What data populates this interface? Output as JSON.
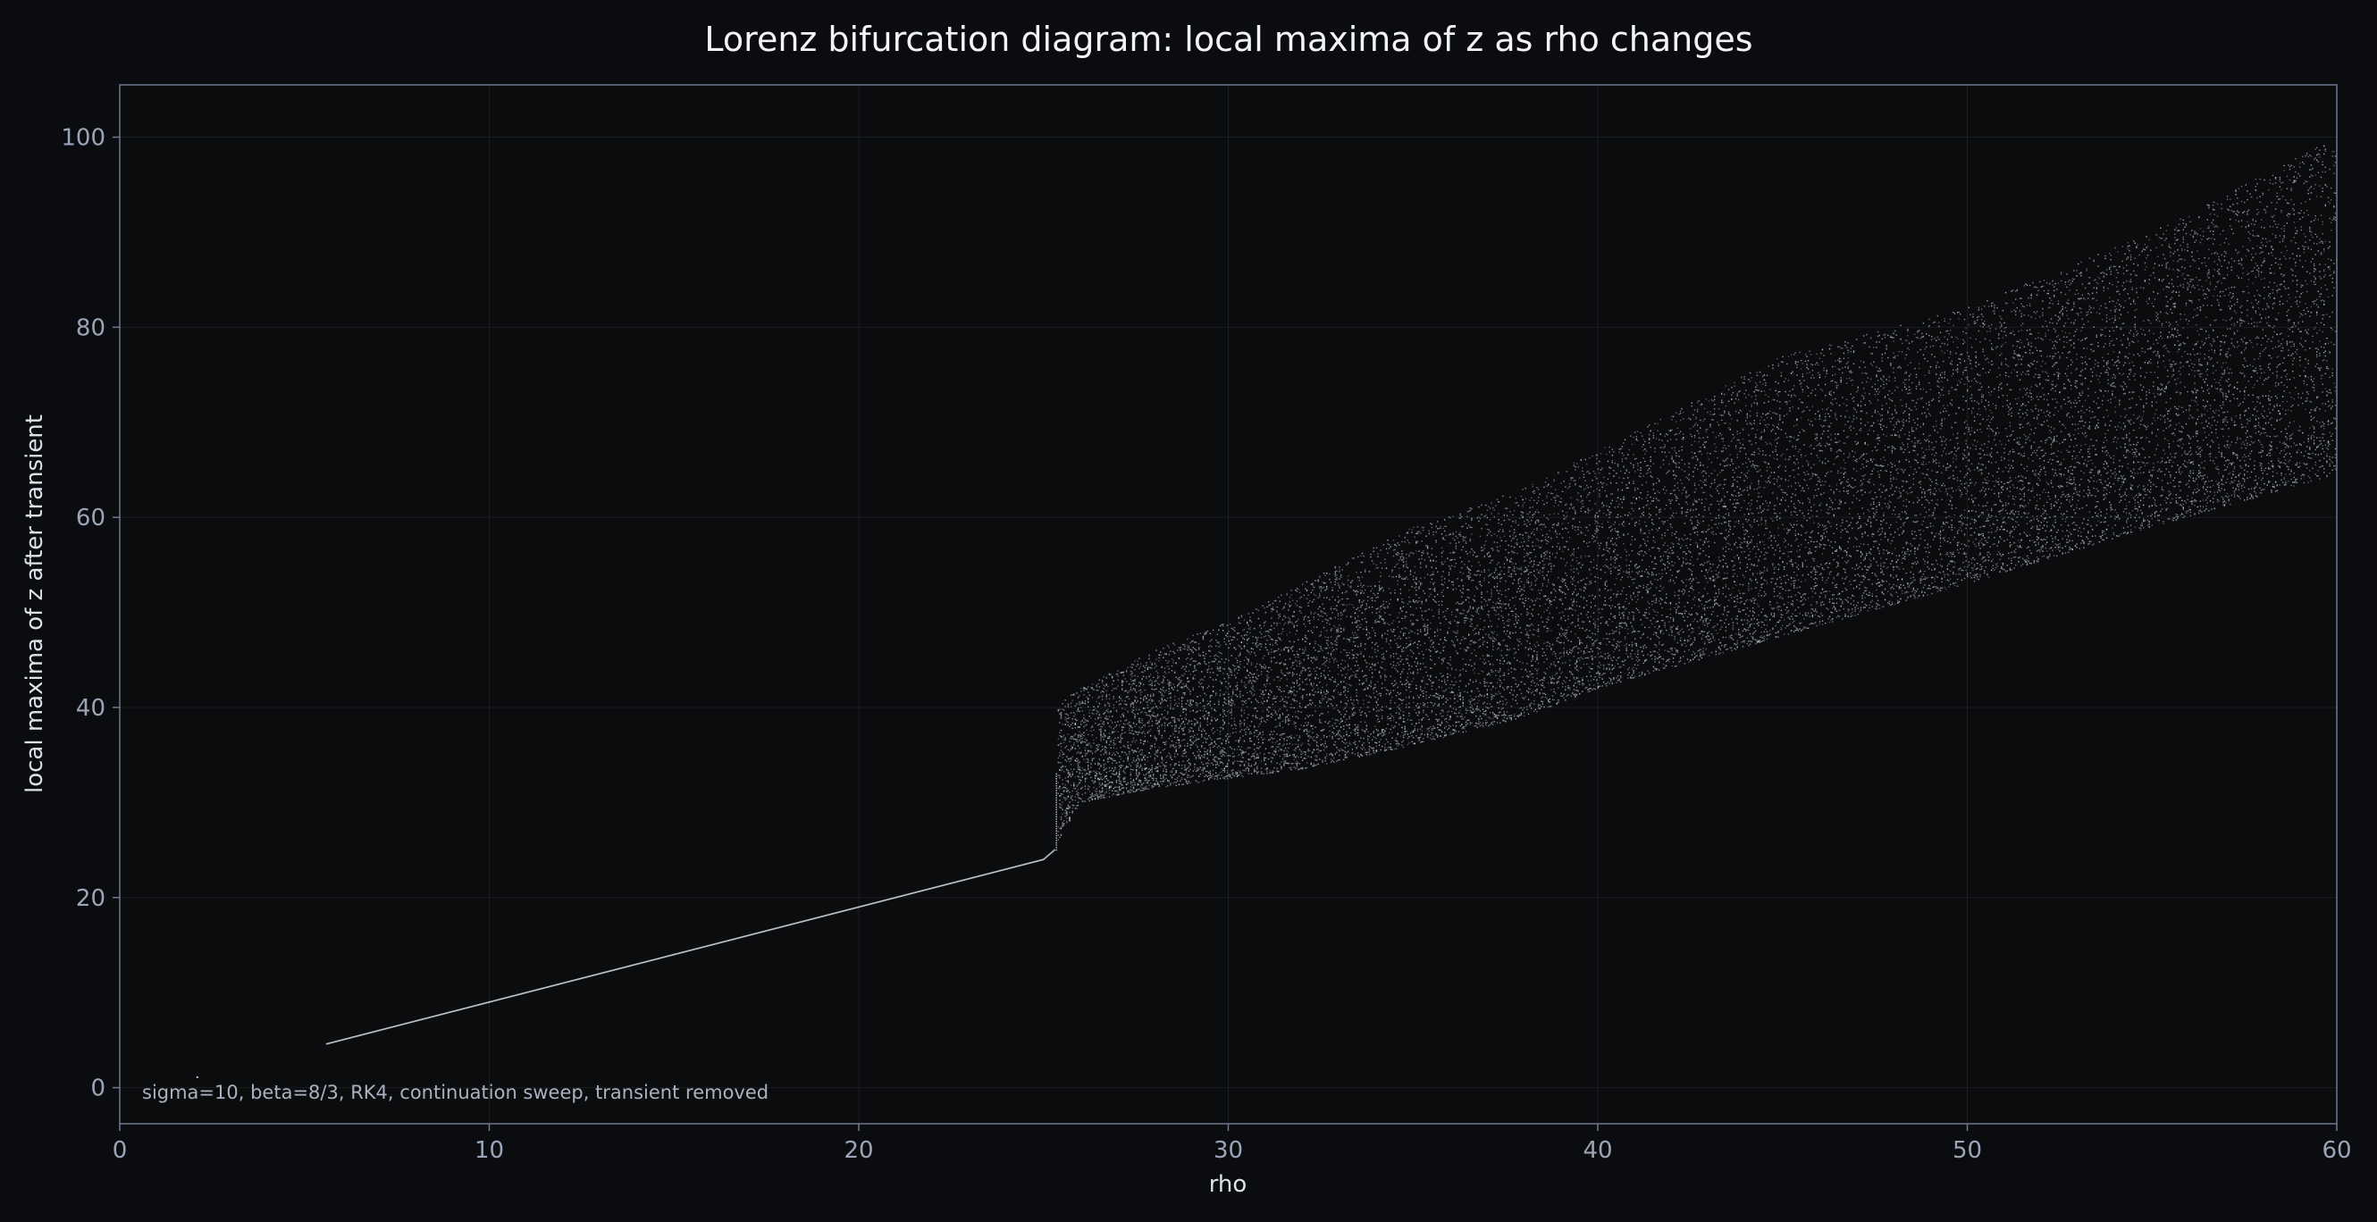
{
  "chart_data": {
    "type": "scatter",
    "title": "Lorenz bifurcation diagram: local maxima of z as rho changes",
    "xlabel": "rho",
    "ylabel": "local maxima of z after transient",
    "xlim": [
      0,
      60
    ],
    "ylim": [
      -3.8,
      105.5
    ],
    "x_ticks": [
      "0",
      "10",
      "20",
      "30",
      "40",
      "50",
      "60"
    ],
    "y_ticks": [
      "0",
      "20",
      "40",
      "60",
      "80",
      "100"
    ],
    "grid": true,
    "legend": "none",
    "annotation": "sigma=10, beta=8/3, RK4, continuation sweep, transient removed",
    "parameters": {
      "sigma": 10,
      "beta": "8/3",
      "method": "RK4"
    },
    "series": [
      {
        "kind": "fixed-point branch (single local maximum per rho)",
        "points": [
          [
            2.1,
            1.1
          ],
          [
            5.6,
            4.6
          ],
          [
            10,
            9.0
          ],
          [
            15,
            14.0
          ],
          [
            20,
            19.0
          ],
          [
            24.5,
            23.5
          ],
          [
            25.0,
            24.0
          ],
          [
            25.3,
            25.0
          ]
        ]
      },
      {
        "kind": "chaotic band (many local maxima per rho)",
        "envelope": [
          {
            "rho": 25.4,
            "z_min": 26.0,
            "z_max": 40.5
          },
          {
            "rho": 26.0,
            "z_min": 30.0,
            "z_max": 42.0
          },
          {
            "rho": 28.0,
            "z_min": 31.5,
            "z_max": 46.0
          },
          {
            "rho": 30.0,
            "z_min": 32.5,
            "z_max": 49.0
          },
          {
            "rho": 32.0,
            "z_min": 33.5,
            "z_max": 53.0
          },
          {
            "rho": 35.0,
            "z_min": 36.0,
            "z_max": 59.0
          },
          {
            "rho": 38.0,
            "z_min": 39.0,
            "z_max": 63.0
          },
          {
            "rho": 40.0,
            "z_min": 42.0,
            "z_max": 67.0
          },
          {
            "rho": 45.0,
            "z_min": 47.5,
            "z_max": 77.0
          },
          {
            "rho": 50.0,
            "z_min": 53.0,
            "z_max": 82.0
          },
          {
            "rho": 55.0,
            "z_min": 59.0,
            "z_max": 90.0
          },
          {
            "rho": 60.0,
            "z_min": 64.5,
            "z_max": 100.0
          }
        ]
      }
    ]
  },
  "colors": {
    "background": "#0a0c0f",
    "plot_background": "#0b0c0e",
    "axes_frame": "#6e7a90",
    "grid": "#1a1d22",
    "points": "#c8ccd2"
  }
}
